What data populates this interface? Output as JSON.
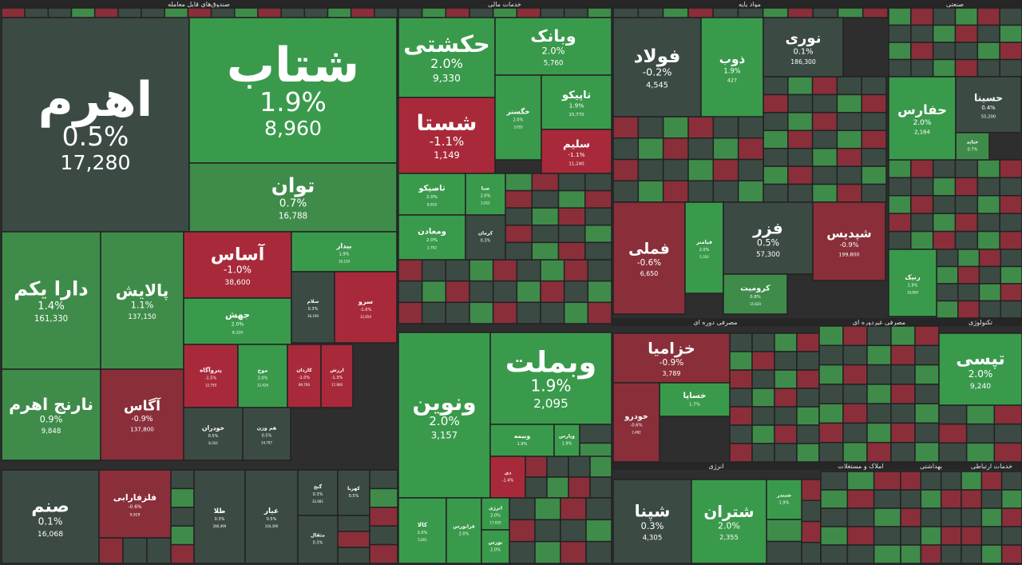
{
  "colors": {
    "up_strong": "#3a9a4c",
    "up_light": "#3f8c4a",
    "neutral": "#3c4a44",
    "down": "#8a2f3a",
    "down_strong": "#a82a3a",
    "background": "#2e2e2e"
  },
  "chart_data": {
    "type": "treemap",
    "title": "",
    "sectors": [
      {
        "name": "صندوق‌های قابل معامله",
        "tiles": [
          {
            "name": "اهرم",
            "change": "0.5%",
            "price": "17,280",
            "change_pct": 0.5
          },
          {
            "name": "شتاب",
            "change": "1.9%",
            "price": "8,960",
            "change_pct": 1.9
          },
          {
            "name": "توان",
            "change": "0.7%",
            "price": "16,788",
            "change_pct": 0.7
          },
          {
            "name": "دارا یکم",
            "change": "1.4%",
            "price": "161,330",
            "change_pct": 1.4
          },
          {
            "name": "پالایش",
            "change": "1.1%",
            "price": "137,150",
            "change_pct": 1.1
          },
          {
            "name": "آساس",
            "change": "-1.0%",
            "price": "38,600",
            "change_pct": -1.0
          },
          {
            "name": "بیدار",
            "change": "1.9%",
            "price": "10,120",
            "change_pct": 1.9
          },
          {
            "name": "جهش",
            "change": "2.0%",
            "price": "8,320",
            "change_pct": 2.0
          },
          {
            "name": "سلام",
            "change": "0.3%",
            "price": "16,190",
            "change_pct": 0.3
          },
          {
            "name": "سرو",
            "change": "-1.0%",
            "price": "12,650",
            "change_pct": -1.0
          },
          {
            "name": "نارنج اهرم",
            "change": "0.9%",
            "price": "9,848",
            "change_pct": 0.9
          },
          {
            "name": "آگاس",
            "change": "-0.9%",
            "price": "137,800",
            "change_pct": -0.9
          },
          {
            "name": "پتروآگاه",
            "change": "-1.5%",
            "price": "12,750",
            "change_pct": -1.5
          },
          {
            "name": "موج",
            "change": "2.0%",
            "price": "12,426",
            "change_pct": 2.0
          },
          {
            "name": "کاردان",
            "change": "-1.0%",
            "price": "89,700",
            "change_pct": -1.0
          },
          {
            "name": "ارزش",
            "change": "-1.3%",
            "price": "17,900",
            "change_pct": -1.3
          },
          {
            "name": "خودران",
            "change": "0.5%",
            "price": "8,310",
            "change_pct": 0.5
          },
          {
            "name": "هم وزن",
            "change": "0.5%",
            "price": "14,797",
            "change_pct": 0.5
          },
          {
            "name": "صنم",
            "change": "0.1%",
            "price": "16,068",
            "change_pct": 0.1
          },
          {
            "name": "فلزفارابی",
            "change": "-0.6%",
            "price": "9,929",
            "change_pct": -0.6
          },
          {
            "name": "طلا",
            "change": "0.3%",
            "price": "280,499",
            "change_pct": 0.3
          },
          {
            "name": "عیار",
            "change": "0.5%",
            "price": "104,390",
            "change_pct": 0.5
          },
          {
            "name": "گنج",
            "change": "0.3%",
            "price": "32,681",
            "change_pct": 0.3
          },
          {
            "name": "مثقال",
            "change": "0.3%",
            "price": "",
            "change_pct": 0.3
          },
          {
            "name": "کهربا",
            "change": "0.5%",
            "price": "",
            "change_pct": 0.5
          }
        ]
      },
      {
        "name": "خدمات مالی",
        "tiles": [
          {
            "name": "حکشتی",
            "change": "2.0%",
            "price": "9,330",
            "change_pct": 2.0
          },
          {
            "name": "وبانک",
            "change": "2.0%",
            "price": "5,760",
            "change_pct": 2.0
          },
          {
            "name": "شستا",
            "change": "-1.1%",
            "price": "1,149",
            "change_pct": -1.1
          },
          {
            "name": "خگستر",
            "change": "2.0%",
            "price": "3,055",
            "change_pct": 2.0
          },
          {
            "name": "تاپیکو",
            "change": "1.9%",
            "price": "15,770",
            "change_pct": 1.9
          },
          {
            "name": "سلیم",
            "change": "-1.1%",
            "price": "11,240",
            "change_pct": -1.1
          },
          {
            "name": "تاصیکو",
            "change": "2.0%",
            "price": "8,910",
            "change_pct": 2.0
          },
          {
            "name": "صبا",
            "change": "2.0%",
            "price": "2,012",
            "change_pct": 2.0
          },
          {
            "name": "ومعادن",
            "change": "2.0%",
            "price": "2,792",
            "change_pct": 2.0
          },
          {
            "name": "کرمان",
            "change": "0.3%",
            "price": "",
            "change_pct": 0.3
          },
          {
            "name": "وبملت",
            "change": "1.9%",
            "price": "2,095",
            "change_pct": 1.9
          },
          {
            "name": "ونوین",
            "change": "2.0%",
            "price": "3,157",
            "change_pct": 2.0
          },
          {
            "name": "وبیمه",
            "change": "1.9%",
            "price": "",
            "change_pct": 1.9
          },
          {
            "name": "وپارس",
            "change": "1.9%",
            "price": "",
            "change_pct": 1.9
          },
          {
            "name": "دی",
            "change": "-1.4%",
            "price": "",
            "change_pct": -1.4
          },
          {
            "name": "کالا",
            "change": "2.0%",
            "price": "5,001",
            "change_pct": 2.0
          },
          {
            "name": "فرابورس",
            "change": "2.0%",
            "price": "",
            "change_pct": 2.0
          },
          {
            "name": "انرژی",
            "change": "2.0%",
            "price": "17,020",
            "change_pct": 2.0
          },
          {
            "name": "بورس",
            "change": "2.0%",
            "price": "",
            "change_pct": 2.0
          }
        ]
      },
      {
        "name": "مواد پایه",
        "tiles": [
          {
            "name": "فولاد",
            "change": "-0.2%",
            "price": "4,545",
            "change_pct": -0.2
          },
          {
            "name": "ذوب",
            "change": "1.9%",
            "price": "427",
            "change_pct": 1.9
          },
          {
            "name": "نوری",
            "change": "0.1%",
            "price": "186,300",
            "change_pct": 0.1
          },
          {
            "name": "شپدیس",
            "change": "-0.9%",
            "price": "199,800",
            "change_pct": -0.9
          },
          {
            "name": "فملی",
            "change": "-0.6%",
            "price": "6,650",
            "change_pct": -0.6
          },
          {
            "name": "فیامتر",
            "change": "2.0%",
            "price": "5,310",
            "change_pct": 2.0
          },
          {
            "name": "فزر",
            "change": "0.5%",
            "price": "57,300",
            "change_pct": 0.5
          },
          {
            "name": "کرومیت",
            "change": "0.8%",
            "price": "15,620",
            "change_pct": 0.8
          }
        ]
      },
      {
        "name": "صنعتی",
        "tiles": [
          {
            "name": "حفارس",
            "change": "2.0%",
            "price": "2,164",
            "change_pct": 2.0
          },
          {
            "name": "حسینا",
            "change": "0.4%",
            "price": "55,200",
            "change_pct": 0.4
          },
          {
            "name": "حتاید",
            "change": "0.7%",
            "price": "",
            "change_pct": 0.7
          },
          {
            "name": "رنیک",
            "change": "1.9%",
            "price": "10,600",
            "change_pct": 1.9
          }
        ]
      },
      {
        "name": "مصرفی دوره ای",
        "tiles": [
          {
            "name": "خزامیا",
            "change": "-0.9%",
            "price": "3,789",
            "change_pct": -0.9
          },
          {
            "name": "خساپا",
            "change": "1.7%",
            "price": "",
            "change_pct": 1.7
          },
          {
            "name": "خودرو",
            "change": "-0.6%",
            "price": "2,482",
            "change_pct": -0.6
          }
        ]
      },
      {
        "name": "مصرفی غیردوره ای",
        "tiles": []
      },
      {
        "name": "تکنولوژی",
        "tiles": [
          {
            "name": "تپسی",
            "change": "2.0%",
            "price": "9,240",
            "change_pct": 2.0
          }
        ]
      },
      {
        "name": "انرژی",
        "tiles": [
          {
            "name": "شپنا",
            "change": "0.3%",
            "price": "4,305",
            "change_pct": 0.3
          },
          {
            "name": "شتران",
            "change": "2.0%",
            "price": "2,355",
            "change_pct": 2.0
          },
          {
            "name": "شبندر",
            "change": "1.9%",
            "price": "",
            "change_pct": 1.9
          }
        ]
      },
      {
        "name": "املاک و مستغلات",
        "tiles": []
      },
      {
        "name": "بهداشتی",
        "tiles": []
      },
      {
        "name": "خدمات ارتباطی",
        "tiles": []
      }
    ]
  }
}
